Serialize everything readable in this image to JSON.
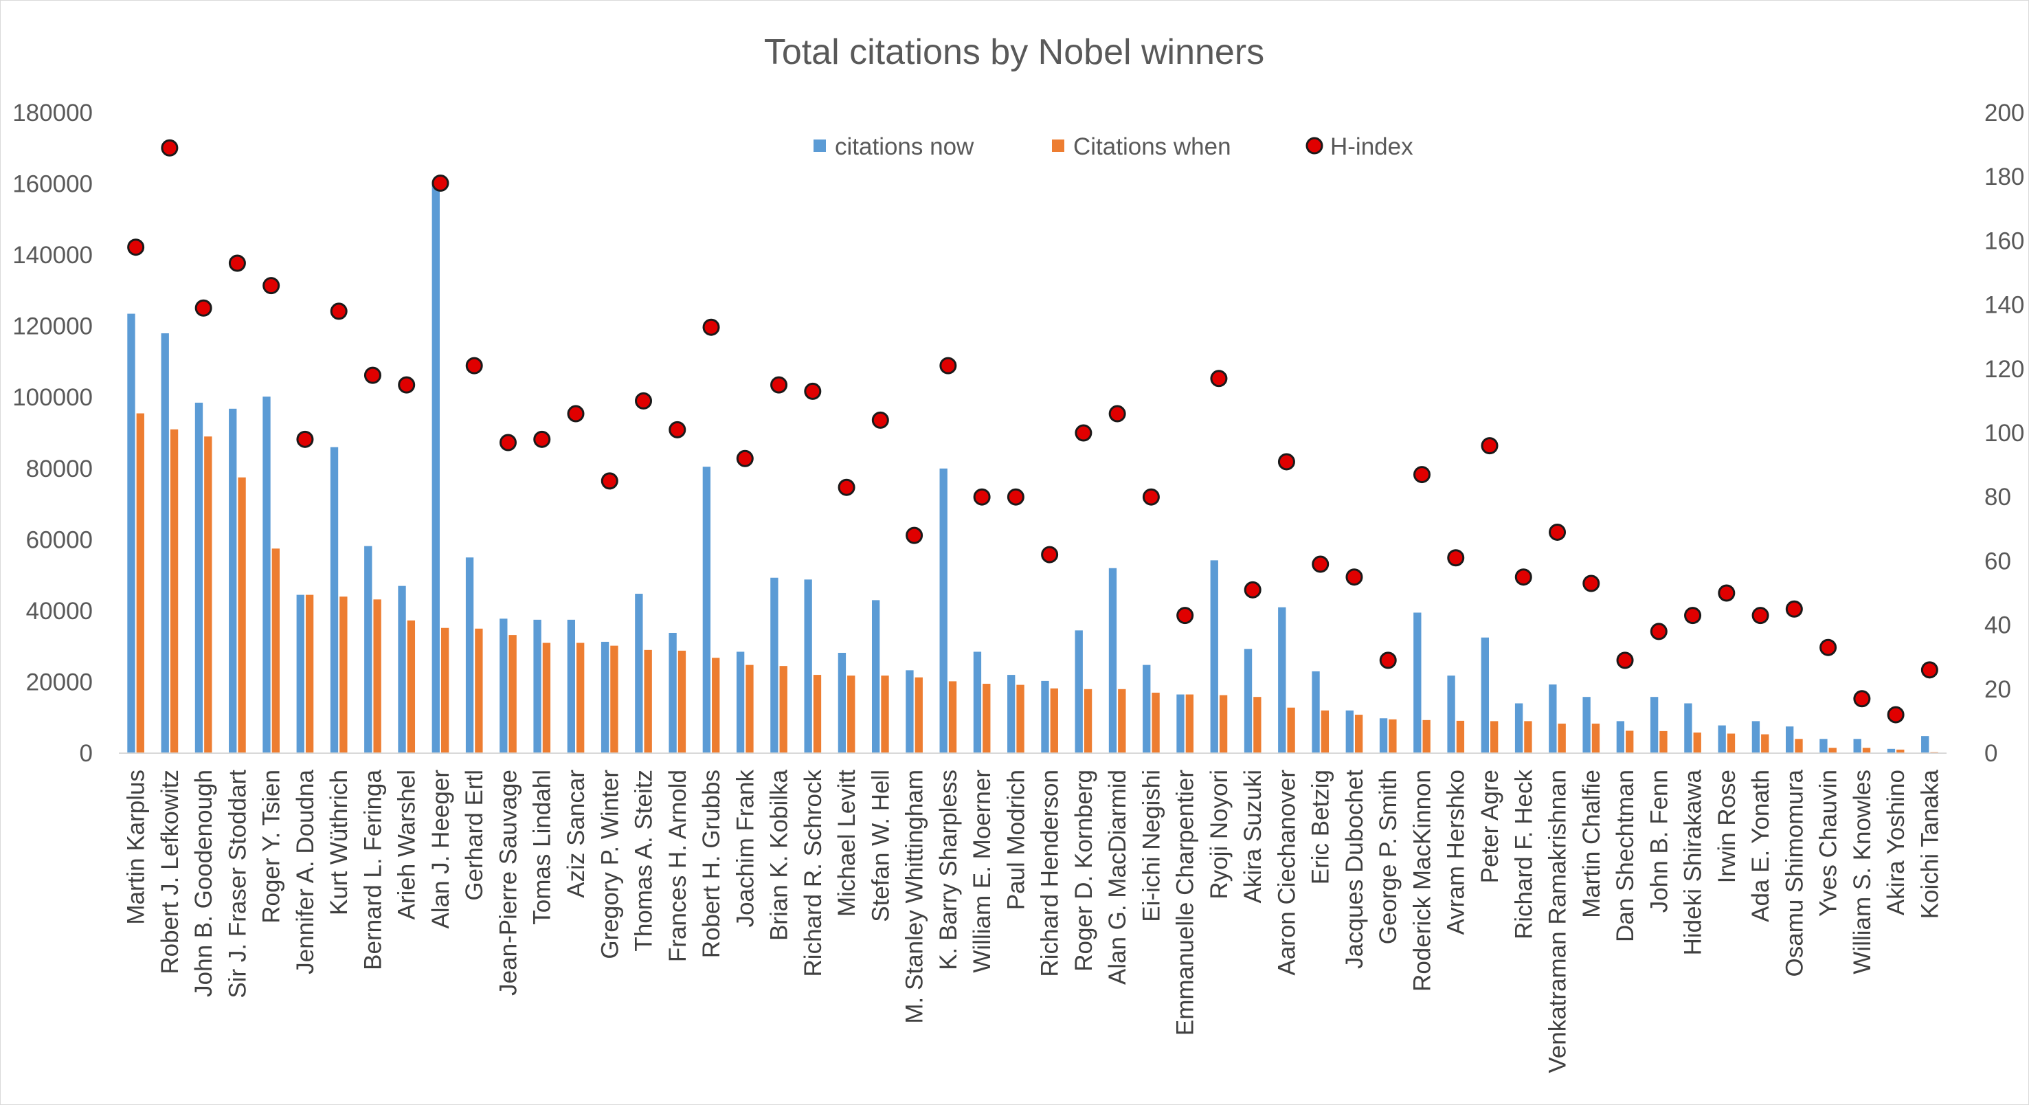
{
  "chart_data": {
    "type": "bar",
    "title": "Total citations by Nobel winners",
    "y_left": {
      "min": 0,
      "max": 180000,
      "step": 20000,
      "ticks": [
        "0",
        "20000",
        "40000",
        "60000",
        "80000",
        "100000",
        "120000",
        "140000",
        "160000",
        "180000"
      ]
    },
    "y_right": {
      "min": 0,
      "max": 200,
      "step": 20,
      "ticks": [
        "0",
        "20",
        "40",
        "60",
        "80",
        "100",
        "120",
        "140",
        "160",
        "180",
        "200"
      ]
    },
    "grid": false,
    "legend_position": "top-center",
    "colors": {
      "citations_now": "#5B9BD5",
      "citations_when": "#ED7D31",
      "h_index_fill": "#E00000",
      "h_index_stroke": "#1a1a1a"
    },
    "categories": [
      "Martin Karplus",
      "Robert J. Lefkowitz",
      "John B. Goodenough",
      "Sir J. Fraser Stoddart",
      "Roger Y. Tsien",
      "Jennifer A. Doudna",
      "Kurt Wüthrich",
      "Bernard L. Feringa",
      "Arieh Warshel",
      "Alan J. Heeger",
      "Gerhard Ertl",
      "Jean-Pierre Sauvage",
      "Tomas Lindahl",
      "Aziz Sancar",
      "Gregory P. Winter",
      "Thomas A. Steitz",
      "Frances H. Arnold",
      "Robert H. Grubbs",
      "Joachim Frank",
      "Brian K. Kobilka",
      "Richard R. Schrock",
      "Michael Levitt",
      "Stefan W. Hell",
      "M. Stanley Whittingham",
      "K. Barry Sharpless",
      "William E. Moerner",
      "Paul Modrich",
      "Richard Henderson",
      "Roger D. Kornberg",
      "Alan G. MacDiarmid",
      "Ei-ichi Negishi",
      "Emmanuelle Charpentier",
      "Ryoji Noyori",
      "Akira Suzuki",
      "Aaron Ciechanover",
      "Eric Betzig",
      "Jacques Dubochet",
      "George P. Smith",
      "Roderick MacKinnon",
      "Avram Hershko",
      "Peter Agre",
      "Richard F. Heck",
      "Venkatraman Ramakrishnan",
      "Martin Chalfie",
      "Dan Shechtman",
      "John B. Fenn",
      "Hideki Shirakawa",
      "Irwin Rose",
      "Ada E. Yonath",
      "Osamu Shimomura",
      "Yves Chauvin",
      "William S. Knowles",
      "Akira Yoshino",
      "Koichi Tanaka"
    ],
    "series": [
      {
        "name": "citations now",
        "axis": "left",
        "kind": "bar",
        "values": [
          123500,
          118000,
          98500,
          96800,
          100200,
          44500,
          86000,
          58200,
          47000,
          160000,
          55000,
          37800,
          37500,
          37500,
          31300,
          44800,
          33800,
          80500,
          28500,
          49300,
          48800,
          28200,
          43000,
          23300,
          80000,
          28500,
          22000,
          20300,
          34500,
          52000,
          24800,
          16500,
          54200,
          29300,
          41000,
          23000,
          12000,
          9800,
          39500,
          21800,
          32500,
          14000,
          19300,
          15800,
          9000,
          15800,
          14000,
          7800,
          9000,
          7500,
          4000,
          4000,
          1200,
          4800
        ]
      },
      {
        "name": "Citations when",
        "axis": "left",
        "kind": "bar",
        "values": [
          95500,
          91000,
          89000,
          77500,
          57500,
          44500,
          44000,
          43200,
          37300,
          35200,
          35000,
          33200,
          31000,
          31000,
          30200,
          29000,
          28800,
          26800,
          24800,
          24500,
          22000,
          21800,
          21800,
          21300,
          20200,
          19500,
          19200,
          18200,
          18000,
          18000,
          17000,
          16500,
          16300,
          15800,
          12800,
          12000,
          10800,
          9500,
          9300,
          9100,
          9000,
          9000,
          8300,
          8300,
          6300,
          6200,
          5800,
          5500,
          5300,
          4000,
          1500,
          1500,
          1000,
          300
        ]
      },
      {
        "name": "H-index",
        "axis": "right",
        "kind": "scatter",
        "values": [
          158,
          189,
          139,
          153,
          146,
          98,
          138,
          118,
          115,
          178,
          121,
          97,
          98,
          106,
          85,
          110,
          101,
          133,
          92,
          115,
          113,
          83,
          104,
          68,
          121,
          80,
          80,
          62,
          100,
          106,
          80,
          43,
          117,
          51,
          91,
          59,
          55,
          29,
          87,
          61,
          96,
          55,
          69,
          53,
          29,
          38,
          43,
          50,
          43,
          45,
          33,
          17,
          12,
          26
        ]
      }
    ]
  }
}
